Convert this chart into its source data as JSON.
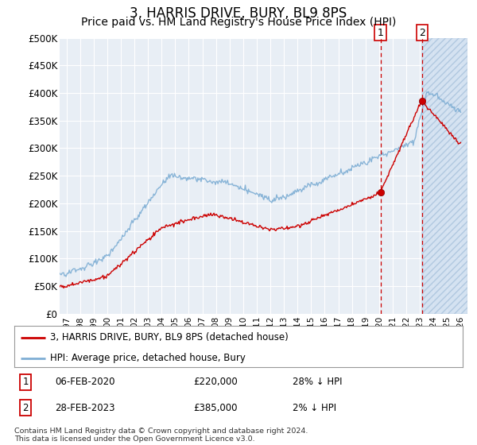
{
  "title": "3, HARRIS DRIVE, BURY, BL9 8PS",
  "subtitle": "Price paid vs. HM Land Registry's House Price Index (HPI)",
  "title_fontsize": 12,
  "subtitle_fontsize": 10,
  "background_color": "#ffffff",
  "plot_bg_color": "#e8eef5",
  "grid_color": "#ffffff",
  "ylim": [
    0,
    500000
  ],
  "yticks": [
    0,
    50000,
    100000,
    150000,
    200000,
    250000,
    300000,
    350000,
    400000,
    450000,
    500000
  ],
  "ytick_labels": [
    "£0",
    "£50K",
    "£100K",
    "£150K",
    "£200K",
    "£250K",
    "£300K",
    "£350K",
    "£400K",
    "£450K",
    "£500K"
  ],
  "hpi_color": "#7eaed4",
  "price_color": "#cc0000",
  "dashed_color": "#cc0000",
  "marker1_year": 2020.1,
  "marker1_value": 220000,
  "marker2_year": 2023.15,
  "marker2_value": 385000,
  "legend_label1": "3, HARRIS DRIVE, BURY, BL9 8PS (detached house)",
  "legend_label2": "HPI: Average price, detached house, Bury",
  "copyright": "Contains HM Land Registry data © Crown copyright and database right 2024.\nThis data is licensed under the Open Government Licence v3.0.",
  "shade_start_year": 2023.15,
  "shade_end_year": 2026.5,
  "xmin": 1996.5,
  "xmax": 2026.5
}
